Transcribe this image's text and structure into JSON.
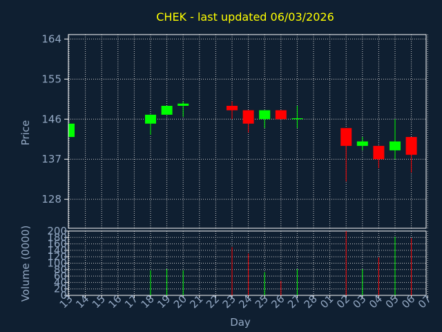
{
  "chart_data": [
    {
      "type": "candlestick",
      "title": "CHEK - last updated 06/03/2026",
      "xlabel": "Day",
      "ylabel": "Price",
      "y_ticks": [
        128,
        137,
        146,
        155,
        164
      ],
      "ylim": [
        121.5,
        165
      ],
      "x_ticks": [
        "13",
        "14",
        "15",
        "16",
        "17",
        "18",
        "19",
        "20",
        "21",
        "22",
        "23",
        "24",
        "25",
        "26",
        "27",
        "28",
        "01",
        "02",
        "03",
        "04",
        "05",
        "06",
        "07"
      ],
      "grid": true,
      "colors": {
        "up": "#00ff00",
        "down": "#ff0000",
        "title": "#ffff00",
        "text": "#94a9c4",
        "background": "#0f1f31",
        "grid": "#cccccc",
        "axis": "#ffffff"
      },
      "candles": [
        {
          "day": "13",
          "open": 142.0,
          "close": 145.0,
          "high": 145.0,
          "low": 142.0
        },
        {
          "day": "18",
          "open": 145.0,
          "close": 147.0,
          "high": 147.0,
          "low": 142.5
        },
        {
          "day": "19",
          "open": 147.0,
          "close": 149.0,
          "high": 149.0,
          "low": 147.0
        },
        {
          "day": "20",
          "open": 149.0,
          "close": 149.5,
          "high": 150.0,
          "low": 146.5
        },
        {
          "day": "23",
          "open": 149.0,
          "close": 148.0,
          "high": 150.0,
          "low": 146.0
        },
        {
          "day": "24",
          "open": 148.0,
          "close": 145.0,
          "high": 148.0,
          "low": 143.0
        },
        {
          "day": "25",
          "open": 146.0,
          "close": 148.0,
          "high": 148.0,
          "low": 144.0
        },
        {
          "day": "26",
          "open": 148.0,
          "close": 146.0,
          "high": 148.0,
          "low": 146.0
        },
        {
          "day": "27",
          "open": 146.0,
          "close": 146.2,
          "high": 149.0,
          "low": 144.0
        },
        {
          "day": "02",
          "open": 144.0,
          "close": 140.0,
          "high": 144.0,
          "low": 132.0
        },
        {
          "day": "03",
          "open": 140.0,
          "close": 141.0,
          "high": 142.0,
          "low": 139.0
        },
        {
          "day": "04",
          "open": 140.0,
          "close": 137.0,
          "high": 140.0,
          "low": 135.0
        },
        {
          "day": "05",
          "open": 139.0,
          "close": 141.0,
          "high": 146.0,
          "low": 137.0
        },
        {
          "day": "06",
          "open": 142.0,
          "close": 138.0,
          "high": 142.0,
          "low": 134.0
        }
      ]
    },
    {
      "type": "bar",
      "ylabel": "Volume (0000)",
      "y_ticks": [
        0,
        20,
        40,
        60,
        80,
        100,
        120,
        140,
        160,
        180,
        200
      ],
      "ylim": [
        0,
        200
      ],
      "grid": true,
      "volumes": [
        {
          "day": "18",
          "value": 78,
          "direction": "up"
        },
        {
          "day": "19",
          "value": 82,
          "direction": "up"
        },
        {
          "day": "20",
          "value": 78,
          "direction": "up"
        },
        {
          "day": "23",
          "value": 150,
          "direction": "down"
        },
        {
          "day": "24",
          "value": 130,
          "direction": "down"
        },
        {
          "day": "25",
          "value": 72,
          "direction": "up"
        },
        {
          "day": "26",
          "value": 45,
          "direction": "down"
        },
        {
          "day": "27",
          "value": 82,
          "direction": "up"
        },
        {
          "day": "02",
          "value": 200,
          "direction": "down"
        },
        {
          "day": "03",
          "value": 82,
          "direction": "up"
        },
        {
          "day": "04",
          "value": 118,
          "direction": "down"
        },
        {
          "day": "05",
          "value": 182,
          "direction": "up"
        },
        {
          "day": "06",
          "value": 178,
          "direction": "down"
        }
      ]
    }
  ]
}
